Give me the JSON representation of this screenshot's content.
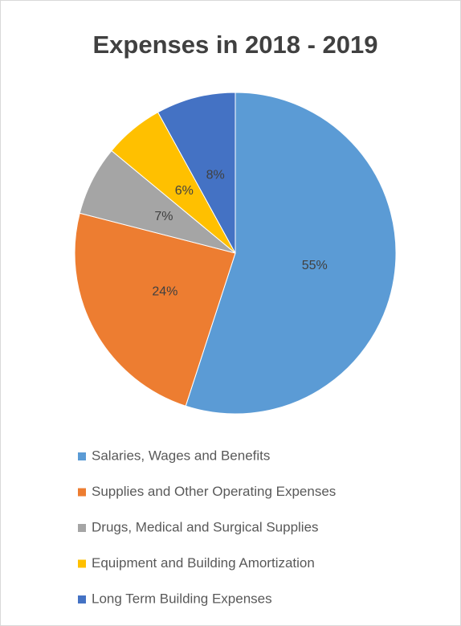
{
  "chart_data": {
    "type": "pie",
    "title": "Expenses in 2018 - 2019",
    "categories": [
      "Salaries, Wages and Benefits",
      "Supplies and Other Operating Expenses",
      "Drugs, Medical and Surgical Supplies",
      "Equipment and Building Amortization",
      "Long Term Building Expenses"
    ],
    "values": [
      55,
      24,
      7,
      6,
      8
    ],
    "value_labels": [
      "55%",
      "24%",
      "7%",
      "6%",
      "8%"
    ],
    "colors": [
      "#5b9bd5",
      "#ed7d31",
      "#a5a5a5",
      "#ffc000",
      "#4472c4"
    ]
  }
}
